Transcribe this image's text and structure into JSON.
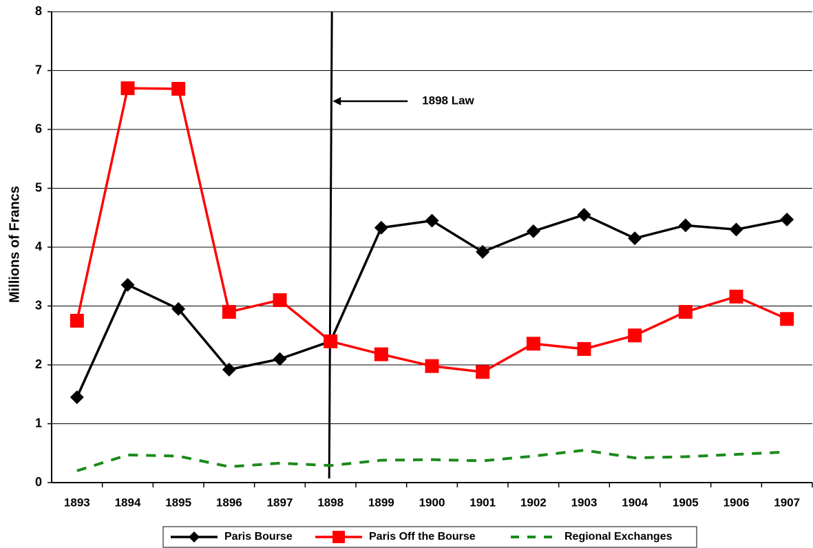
{
  "chart_data": {
    "type": "line",
    "y_label": "Millions of Francs",
    "categories": [
      "1893",
      "1894",
      "1895",
      "1896",
      "1897",
      "1898",
      "1899",
      "1900",
      "1901",
      "1902",
      "1903",
      "1904",
      "1905",
      "1906",
      "1907"
    ],
    "series": [
      {
        "name": "Paris Bourse",
        "color": "#000000",
        "marker": "diamond",
        "values": [
          1.45,
          3.36,
          2.95,
          1.92,
          2.1,
          2.4,
          4.33,
          4.45,
          3.92,
          4.27,
          4.55,
          4.15,
          4.37,
          4.3,
          4.47
        ]
      },
      {
        "name": "Paris Off the Bourse",
        "color": "#ff0000",
        "marker": "square",
        "values": [
          2.75,
          6.7,
          6.69,
          2.9,
          3.1,
          2.4,
          2.18,
          1.98,
          1.88,
          2.36,
          2.27,
          2.5,
          2.9,
          3.16,
          2.78
        ]
      },
      {
        "name": "Regional Exchanges",
        "color": "#1a8a1a",
        "marker": "none",
        "dash": true,
        "values": [
          0.2,
          0.47,
          0.45,
          0.27,
          0.33,
          0.29,
          0.38,
          0.39,
          0.37,
          0.45,
          0.55,
          0.42,
          0.44,
          0.48,
          0.52
        ]
      }
    ],
    "annotations": [
      {
        "text": "1898 Law",
        "x": "1898"
      }
    ],
    "ylim": [
      0,
      8
    ],
    "yticks": [
      0,
      1,
      2,
      3,
      4,
      5,
      6,
      7,
      8
    ],
    "grid": true,
    "legend": "bottom"
  }
}
